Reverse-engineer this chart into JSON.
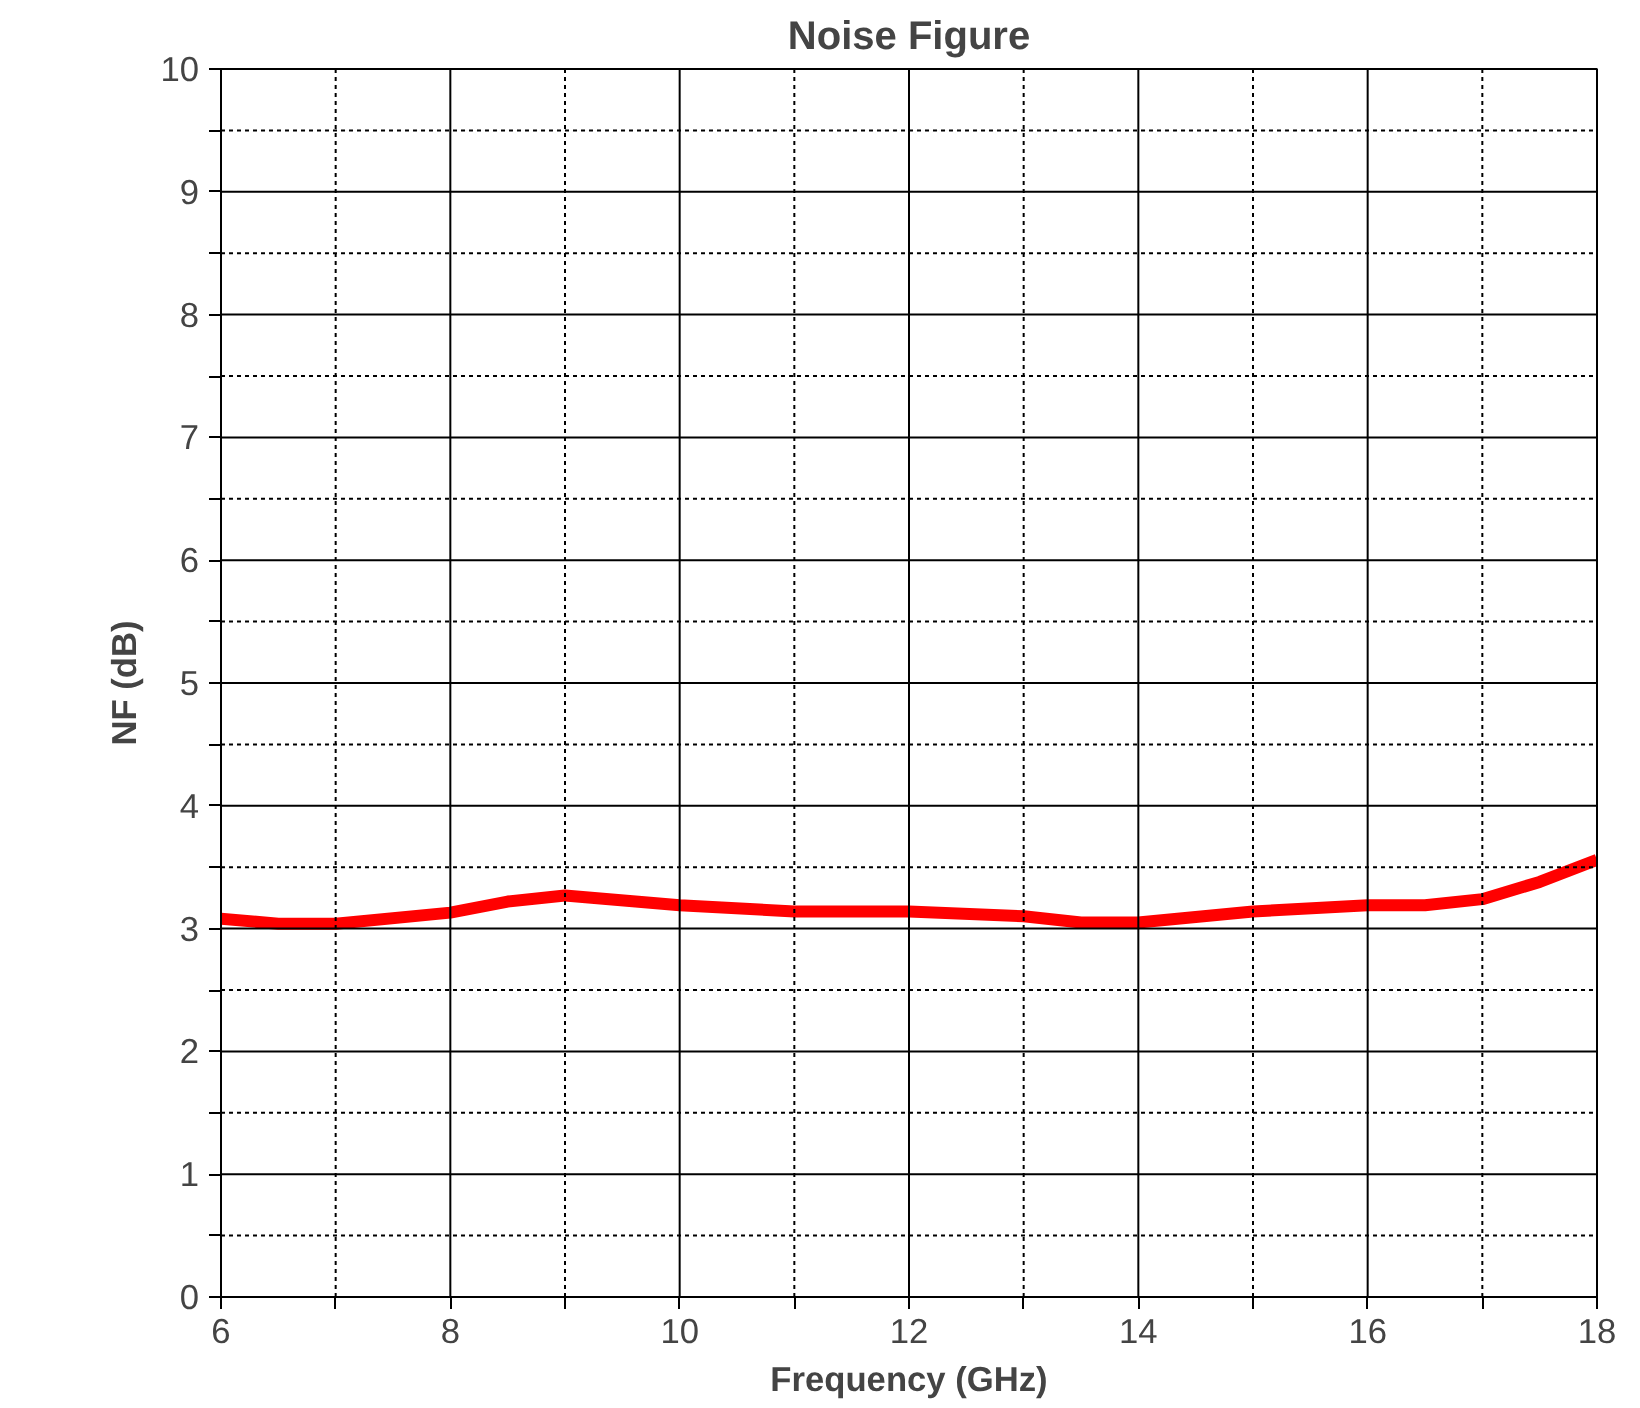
{
  "chart_data": {
    "type": "line",
    "title": "Noise Figure",
    "xlabel": "Frequency (GHz)",
    "ylabel": "NF (dB)",
    "x": [
      6,
      6.5,
      7,
      8,
      8.5,
      9,
      10,
      11,
      12,
      13,
      13.5,
      14,
      15,
      16,
      16.5,
      17,
      17.5,
      18
    ],
    "series": [
      {
        "color": "#ff0000",
        "values": [
          3.08,
          3.04,
          3.04,
          3.13,
          3.22,
          3.27,
          3.19,
          3.14,
          3.14,
          3.1,
          3.05,
          3.05,
          3.14,
          3.19,
          3.19,
          3.24,
          3.38,
          3.56
        ]
      }
    ],
    "xlim": [
      6,
      18
    ],
    "ylim": [
      0,
      10
    ],
    "xticks": [
      6,
      {
        "value": 7,
        "label": null
      },
      8,
      {
        "value": 9,
        "label": null
      },
      10,
      {
        "value": 11,
        "label": null
      },
      12,
      {
        "value": 13,
        "label": null
      },
      14,
      {
        "value": 15,
        "label": null
      },
      16,
      {
        "value": 17,
        "label": null
      },
      18
    ],
    "yticks": [
      0,
      {
        "value": 0.5,
        "label": null
      },
      1,
      {
        "value": 1.5,
        "label": null
      },
      2,
      {
        "value": 2.5,
        "label": null
      },
      3,
      {
        "value": 3.5,
        "label": null
      },
      4,
      {
        "value": 4.5,
        "label": null
      },
      5,
      {
        "value": 5.5,
        "label": null
      },
      6,
      {
        "value": 6.5,
        "label": null
      },
      7,
      {
        "value": 7.5,
        "label": null
      },
      8,
      {
        "value": 8.5,
        "label": null
      },
      9,
      {
        "value": 9.5,
        "label": null
      },
      10
    ],
    "grid": true,
    "line_style": "solid",
    "marker": "none"
  }
}
